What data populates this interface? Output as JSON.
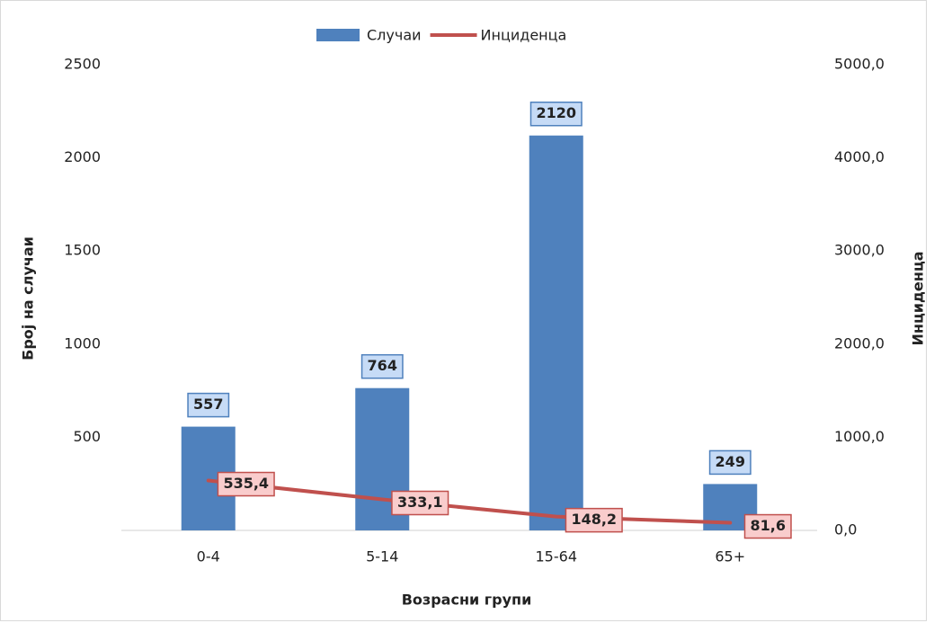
{
  "chart_data": {
    "type": "bar_line",
    "categories": [
      "0-4",
      "5-14",
      "15-64",
      "65+"
    ],
    "x_label": "Возрасни групи",
    "y_label": "Број на случаи",
    "y2_label": "Инциденца",
    "series": [
      {
        "name": "Случаи",
        "type": "bar",
        "color": "#4f81bd",
        "values": [
          557,
          764,
          2120,
          249
        ]
      },
      {
        "name": "Инциденца",
        "type": "line",
        "color": "#c0504d",
        "axis": "y2",
        "values": [
          535.4,
          333.1,
          148.2,
          81.6
        ],
        "value_labels": [
          "535,4",
          "333,1",
          "148,2",
          "81,6"
        ]
      }
    ],
    "ylim": [
      0,
      2500
    ],
    "yticks": [
      500,
      1000,
      1500,
      2000,
      2500
    ],
    "y2lim": [
      0,
      5000
    ],
    "y2ticks": [
      {
        "value": 0,
        "label": "0,0"
      },
      {
        "value": 1000,
        "label": "1000,0"
      },
      {
        "value": 2000,
        "label": "2000,0"
      },
      {
        "value": 3000,
        "label": "3000,0"
      },
      {
        "value": 4000,
        "label": "4000,0"
      },
      {
        "value": 5000,
        "label": "5000,0"
      }
    ],
    "grid": false,
    "legend": "top"
  }
}
